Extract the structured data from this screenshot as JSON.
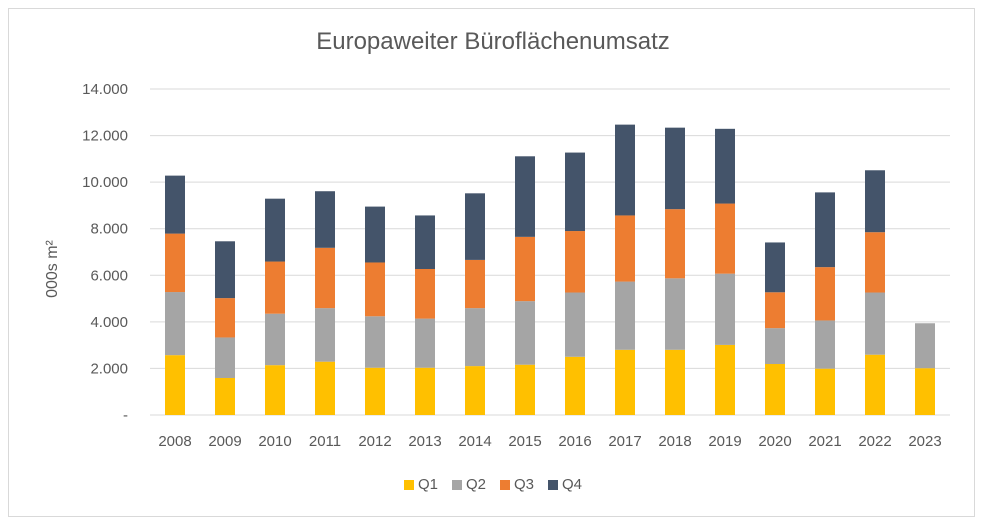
{
  "chart_data": {
    "type": "bar",
    "stacked": true,
    "title": "Europaweiter Büroflächenumsatz",
    "xlabel": "",
    "ylabel": "000s m²",
    "ylim": [
      0,
      14000
    ],
    "yticks": [
      0,
      2000,
      4000,
      6000,
      8000,
      10000,
      12000,
      14000
    ],
    "ytick_labels": [
      "-",
      "2.000",
      "4.000",
      "6.000",
      "8.000",
      "10.000",
      "12.000",
      "14.000"
    ],
    "grid": true,
    "legend_position": "bottom",
    "categories": [
      "2008",
      "2009",
      "2010",
      "2011",
      "2012",
      "2013",
      "2014",
      "2015",
      "2016",
      "2017",
      "2018",
      "2019",
      "2020",
      "2021",
      "2022",
      "2023"
    ],
    "series": [
      {
        "name": "Q1",
        "color": "#ffc000",
        "values": [
          2570,
          1590,
          2140,
          2290,
          2030,
          2030,
          2100,
          2160,
          2500,
          2800,
          2800,
          3010,
          2190,
          1990,
          2590,
          2010
        ]
      },
      {
        "name": "Q2",
        "color": "#a5a5a5",
        "values": [
          2710,
          1740,
          2210,
          2300,
          2210,
          2110,
          2490,
          2730,
          2760,
          2930,
          3070,
          3060,
          1540,
          2070,
          2670,
          1930
        ]
      },
      {
        "name": "Q3",
        "color": "#ed7d31",
        "values": [
          2510,
          1690,
          2240,
          2590,
          2310,
          2130,
          2070,
          2760,
          2640,
          2840,
          2970,
          3010,
          1540,
          2290,
          2590,
          null
        ]
      },
      {
        "name": "Q4",
        "color": "#44546a",
        "values": [
          2490,
          2440,
          2700,
          2430,
          2400,
          2300,
          2860,
          3460,
          3370,
          3900,
          3500,
          3210,
          2140,
          3210,
          2660,
          null
        ]
      }
    ]
  }
}
